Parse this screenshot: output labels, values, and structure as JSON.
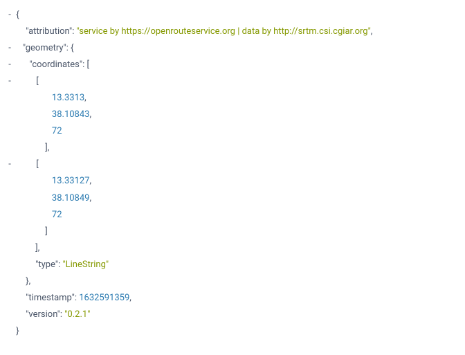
{
  "json_viewer": {
    "toggle_symbol": "-",
    "colors": {
      "key": "#4a5568",
      "string": "#859900",
      "number": "#2a7ab0",
      "punctuation": "#4a5568",
      "background": "#ffffff"
    },
    "font_size": 13,
    "data": {
      "attribution_key": "\"attribution\"",
      "attribution_value": "\"service by https://openrouteservice.org | data by http://srtm.csi.cgiar.org\"",
      "geometry_key": "\"geometry\"",
      "coordinates_key": "\"coordinates\"",
      "coord_0_0": "13.3313",
      "coord_0_1": "38.10843",
      "coord_0_2": "72",
      "coord_1_0": "13.33127",
      "coord_1_1": "38.10849",
      "coord_1_2": "72",
      "type_key": "\"type\"",
      "type_value": "\"LineString\"",
      "timestamp_key": "\"timestamp\"",
      "timestamp_value": "1632591359",
      "version_key": "\"version\"",
      "version_value": "\"0.2.1\"",
      "open_brace": "{",
      "close_brace": "}",
      "open_bracket": "[",
      "close_bracket": "]",
      "comma": ",",
      "colon_space": ": "
    }
  }
}
